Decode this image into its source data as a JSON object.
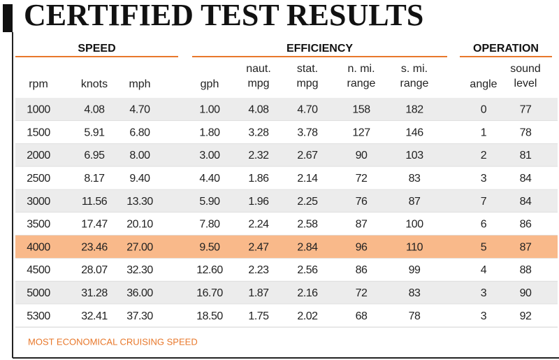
{
  "title": "CERTIFIED TEST RESULTS",
  "table": {
    "groups": [
      "SPEED",
      "EFFICIENCY",
      "OPERATION"
    ],
    "columns": [
      [
        "rpm"
      ],
      [
        "knots"
      ],
      [
        "mph"
      ],
      [
        "gph"
      ],
      [
        "naut.",
        "mpg"
      ],
      [
        "stat.",
        "mpg"
      ],
      [
        "n. mi.",
        "range"
      ],
      [
        "s. mi.",
        "range"
      ],
      [
        "angle"
      ],
      [
        "sound",
        "level"
      ]
    ],
    "rows": [
      [
        "1000",
        "4.08",
        "4.70",
        "1.00",
        "4.08",
        "4.70",
        "158",
        "182",
        "0",
        "77"
      ],
      [
        "1500",
        "5.91",
        "6.80",
        "1.80",
        "3.28",
        "3.78",
        "127",
        "146",
        "1",
        "78"
      ],
      [
        "2000",
        "6.95",
        "8.00",
        "3.00",
        "2.32",
        "2.67",
        "90",
        "103",
        "2",
        "81"
      ],
      [
        "2500",
        "8.17",
        "9.40",
        "4.40",
        "1.86",
        "2.14",
        "72",
        "83",
        "3",
        "84"
      ],
      [
        "3000",
        "11.56",
        "13.30",
        "5.90",
        "1.96",
        "2.25",
        "76",
        "87",
        "7",
        "84"
      ],
      [
        "3500",
        "17.47",
        "20.10",
        "7.80",
        "2.24",
        "2.58",
        "87",
        "100",
        "6",
        "86"
      ],
      [
        "4000",
        "23.46",
        "27.00",
        "9.50",
        "2.47",
        "2.84",
        "96",
        "110",
        "5",
        "87"
      ],
      [
        "4500",
        "28.07",
        "32.30",
        "12.60",
        "2.23",
        "2.56",
        "86",
        "99",
        "4",
        "88"
      ],
      [
        "5000",
        "31.28",
        "36.00",
        "16.70",
        "1.87",
        "2.16",
        "72",
        "83",
        "3",
        "90"
      ],
      [
        "5300",
        "32.41",
        "37.30",
        "18.50",
        "1.75",
        "2.02",
        "68",
        "78",
        "3",
        "92"
      ]
    ],
    "highlight_row": 6
  },
  "footnote": "MOST ECONOMICAL CRUISING SPEED"
}
